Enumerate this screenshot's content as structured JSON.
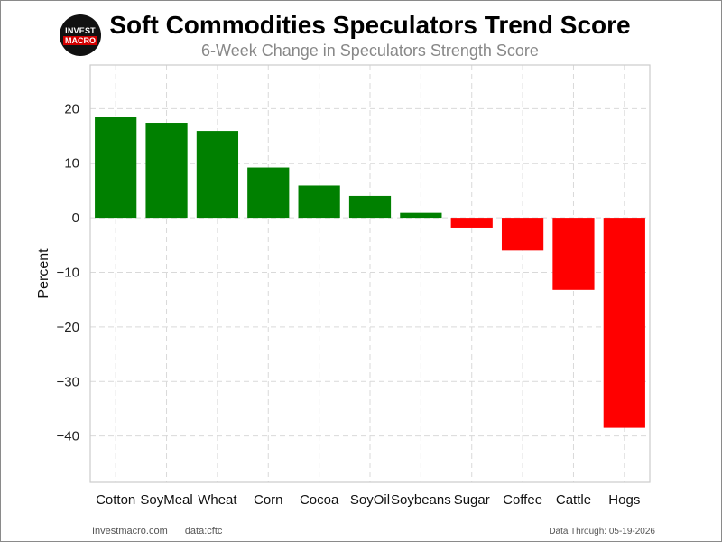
{
  "logo": {
    "top": "INVEST",
    "bottom": "MACRO"
  },
  "header": {
    "title": "Soft Commodities Speculators Trend Score",
    "subtitle": "6-Week Change in Speculators Strength Score"
  },
  "footer": {
    "site": "Investmacro.com",
    "source": "data:cftc",
    "through": "Data Through: 05-19-2026"
  },
  "colors": {
    "positive": "#008000",
    "negative": "#ff0000",
    "grid": "#d9d9d9",
    "axis": "#cccccc"
  },
  "chart_data": {
    "type": "bar",
    "categories": [
      "Cotton",
      "SoyMeal",
      "Wheat",
      "Corn",
      "Cocoa",
      "SoyOil",
      "Soybeans",
      "Sugar",
      "Coffee",
      "Cattle",
      "Hogs"
    ],
    "values": [
      18.5,
      17.4,
      15.9,
      9.2,
      5.9,
      4.0,
      0.9,
      -1.8,
      -6.0,
      -13.2,
      -38.5
    ],
    "ylabel": "Percent",
    "xlabel": "",
    "ylim": [
      -48.5,
      28
    ],
    "yticks": [
      20,
      10,
      0,
      -10,
      -20,
      -30,
      -40
    ],
    "ytick_labels": [
      "20",
      "10",
      "0",
      "−10",
      "−20",
      "−30",
      "−40"
    ],
    "grid": true,
    "legend": "none"
  }
}
